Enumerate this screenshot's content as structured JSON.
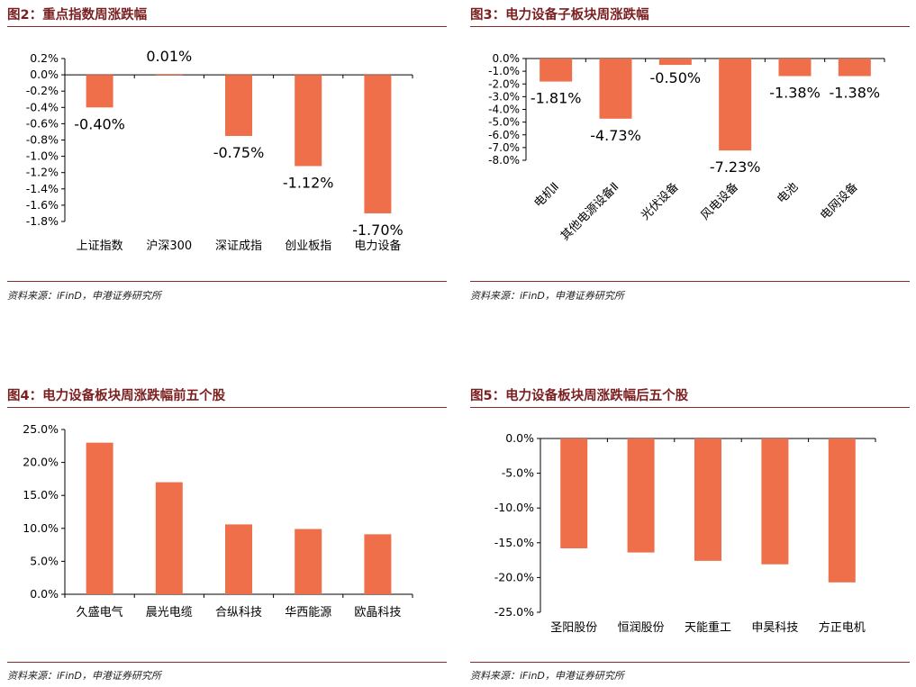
{
  "colors": {
    "bar": "#ee6f4a",
    "title": "#7a1f1f",
    "rule": "#8a2b2b",
    "axis": "#000000"
  },
  "charts": [
    {
      "title": "图2：重点指数周涨跌幅",
      "source": "资料来源：iFinD，申港证券研究所",
      "chart_data": {
        "type": "bar",
        "categories": [
          "上证指数",
          "沪深300",
          "深证成指",
          "创业板指",
          "电力设备"
        ],
        "values": [
          -0.4,
          0.01,
          -0.75,
          -1.12,
          -1.7
        ],
        "data_labels": [
          "-0.40%",
          "0.01%",
          "-0.75%",
          "-1.12%",
          "-1.70%"
        ],
        "ylim": [
          -1.8,
          0.2
        ],
        "yticks": [
          0.2,
          0.0,
          -0.2,
          -0.4,
          -0.6,
          -0.8,
          -1.0,
          -1.2,
          -1.4,
          -1.6,
          -1.8
        ],
        "ytick_labels": [
          "0.2%",
          "0.0%",
          "-0.2%",
          "-0.4%",
          "-0.6%",
          "-0.8%",
          "-1.0%",
          "-1.2%",
          "-1.4%",
          "-1.6%",
          "-1.8%"
        ],
        "grid": false
      }
    },
    {
      "title": "图3：电力设备子板块周涨跌幅",
      "source": "资料来源：iFinD，申港证券研究所",
      "chart_data": {
        "type": "bar",
        "categories": [
          "电机Ⅱ",
          "其他电源设备Ⅱ",
          "光伏设备",
          "风电设备",
          "电池",
          "电网设备"
        ],
        "values": [
          -1.81,
          -4.73,
          -0.5,
          -7.23,
          -1.38,
          -1.38
        ],
        "data_labels": [
          "-1.81%",
          "-4.73%",
          "-0.50%",
          "-7.23%",
          "-1.38%",
          "-1.38%"
        ],
        "ylim": [
          -8.0,
          0.0
        ],
        "yticks": [
          0,
          -1,
          -2,
          -3,
          -4,
          -5,
          -6,
          -7,
          -8
        ],
        "ytick_labels": [
          "0.0%",
          "-1.0%",
          "-2.0%",
          "-3.0%",
          "-4.0%",
          "-5.0%",
          "-6.0%",
          "-7.0%",
          "-8.0%"
        ],
        "grid": false
      }
    },
    {
      "title": "图4：电力设备板块周涨跌幅前五个股",
      "source": "资料来源：iFinD，申港证券研究所",
      "chart_data": {
        "type": "bar",
        "categories": [
          "久盛电气",
          "晨光电缆",
          "合纵科技",
          "华西能源",
          "欧晶科技"
        ],
        "values": [
          23.0,
          17.0,
          10.6,
          9.9,
          9.1
        ],
        "ylim": [
          0,
          25
        ],
        "yticks": [
          0,
          5,
          10,
          15,
          20,
          25
        ],
        "ytick_labels": [
          "0.0%",
          "5.0%",
          "10.0%",
          "15.0%",
          "20.0%",
          "25.0%"
        ],
        "grid": false
      }
    },
    {
      "title": "图5：电力设备板块周涨跌幅后五个股",
      "source": "资料来源：iFinD，申港证券研究所",
      "chart_data": {
        "type": "bar",
        "categories": [
          "圣阳股份",
          "恒润股份",
          "天能重工",
          "申昊科技",
          "方正电机"
        ],
        "values": [
          -15.8,
          -16.4,
          -17.6,
          -18.1,
          -20.7
        ],
        "ylim": [
          -25,
          0
        ],
        "yticks": [
          0,
          -5,
          -10,
          -15,
          -20,
          -25
        ],
        "ytick_labels": [
          "0.0%",
          "-5.0%",
          "-10.0%",
          "-15.0%",
          "-20.0%",
          "-25.0%"
        ],
        "grid": false
      }
    }
  ]
}
